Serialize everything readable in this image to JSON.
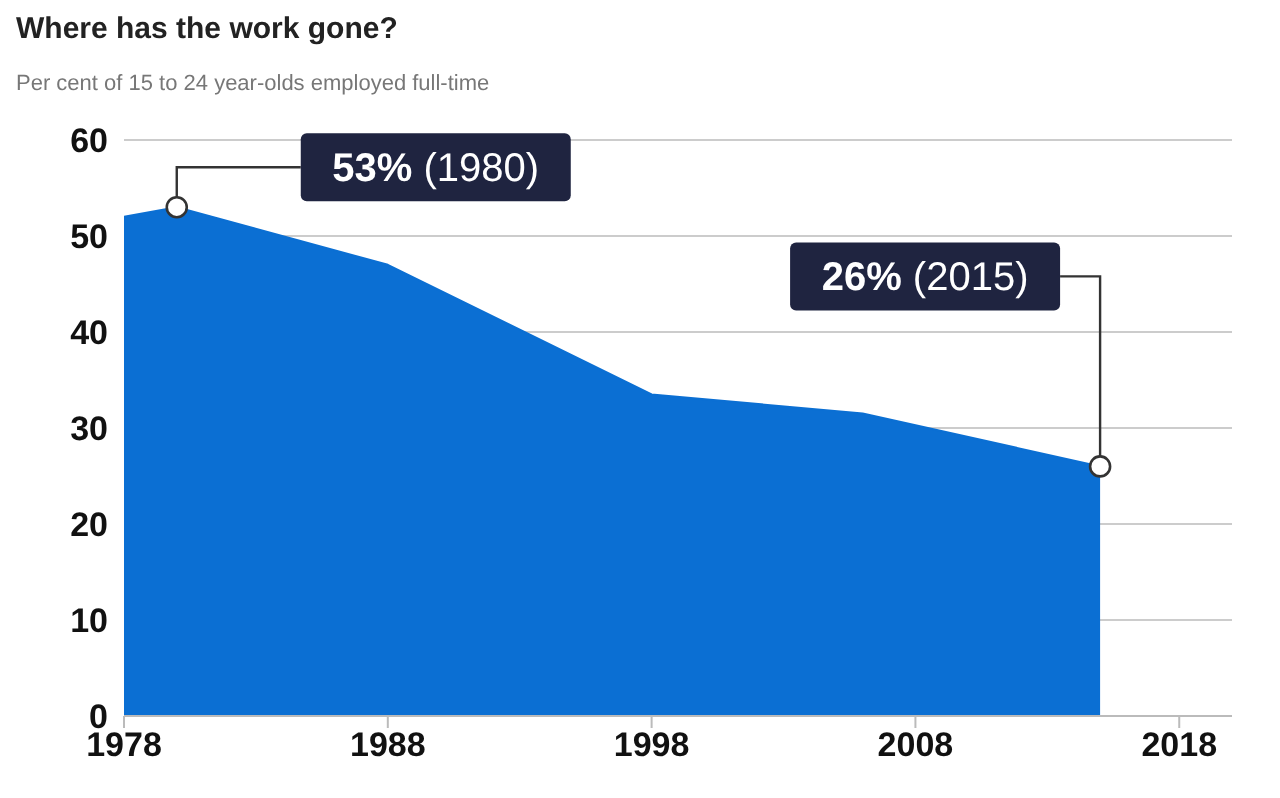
{
  "chart_data": {
    "type": "area",
    "title": "Where has the work gone?",
    "subtitle": "Per cent of 15 to 24 year-olds employed full-time",
    "x": [
      1978,
      1980,
      1988,
      1998,
      2006,
      2015
    ],
    "series": [
      {
        "color": "#0b6fd3",
        "values": [
          52,
          53,
          47,
          33.5,
          31.5,
          26
        ]
      }
    ],
    "xlim": [
      1978,
      2020
    ],
    "xticks": [
      1978,
      1988,
      1998,
      2008,
      2018
    ],
    "ylim": [
      0,
      60
    ],
    "yticks": [
      0,
      10,
      20,
      30,
      40,
      50,
      60
    ],
    "grid": "y",
    "legend": false,
    "annotations": [
      {
        "text": "53% (1980)",
        "x": 1980,
        "y": 53
      },
      {
        "text": "26% (2015)",
        "x": 2015,
        "y": 26
      }
    ]
  }
}
